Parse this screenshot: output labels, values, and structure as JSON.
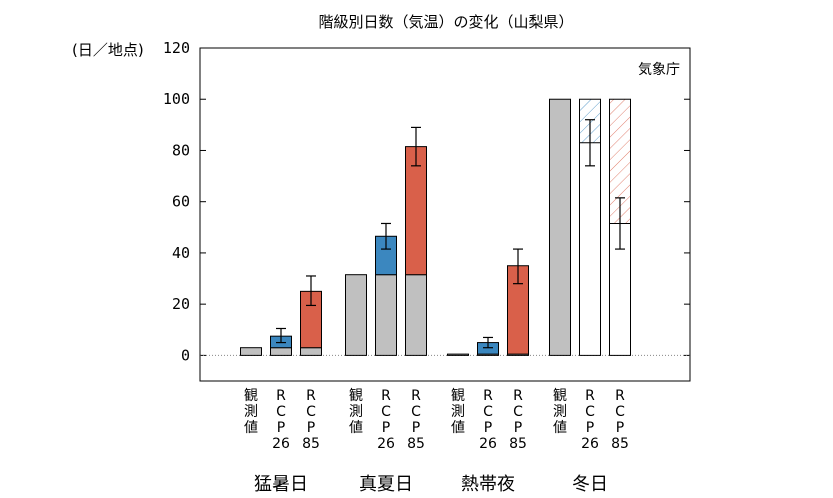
{
  "chart_data": {
    "type": "bar",
    "title": "階級別日数（気温）の変化（山梨県）",
    "ylabel": "(日／地点)",
    "credit": "気象庁",
    "ylim": [
      -10,
      120
    ],
    "yticks": [
      0,
      20,
      40,
      60,
      80,
      100,
      120
    ],
    "grid": false,
    "zero_line": "dotted",
    "colors": {
      "observed": "#c0c0c0",
      "rcp26": "#3b87bf",
      "rcp85": "#d9604a"
    },
    "x_labels": [
      [
        "観",
        "測",
        "値"
      ],
      [
        "R",
        "C",
        "P",
        "26"
      ],
      [
        "R",
        "C",
        "P",
        "85"
      ]
    ],
    "groups": [
      {
        "label": "猛暑日",
        "bars": [
          {
            "kind": "observed",
            "value": 3
          },
          {
            "kind": "rcp26",
            "base": 3,
            "value": 7.5,
            "err_low": 5,
            "err_high": 10.5
          },
          {
            "kind": "rcp85",
            "base": 3,
            "value": 25,
            "err_low": 19.5,
            "err_high": 31
          }
        ]
      },
      {
        "label": "真夏日",
        "bars": [
          {
            "kind": "observed",
            "value": 31.5
          },
          {
            "kind": "rcp26",
            "base": 31.5,
            "value": 46.5,
            "err_low": 41.5,
            "err_high": 51.5
          },
          {
            "kind": "rcp85",
            "base": 31.5,
            "value": 81.5,
            "err_low": 74,
            "err_high": 89
          }
        ]
      },
      {
        "label": "熱帯夜",
        "bars": [
          {
            "kind": "observed",
            "value": 0.5
          },
          {
            "kind": "rcp26",
            "base": 0.5,
            "value": 5,
            "err_low": 3,
            "err_high": 7
          },
          {
            "kind": "rcp85",
            "base": 0.5,
            "value": 35,
            "err_low": 28,
            "err_high": 41.5
          }
        ]
      },
      {
        "label": "冬日",
        "bars": [
          {
            "kind": "observed",
            "value": 100
          },
          {
            "kind": "rcp26",
            "base": 100,
            "value": 83,
            "err_low": 74,
            "err_high": 92,
            "decrease": true
          },
          {
            "kind": "rcp85",
            "base": 100,
            "value": 51.5,
            "err_low": 41.5,
            "err_high": 61.5,
            "decrease": true
          }
        ]
      }
    ]
  }
}
